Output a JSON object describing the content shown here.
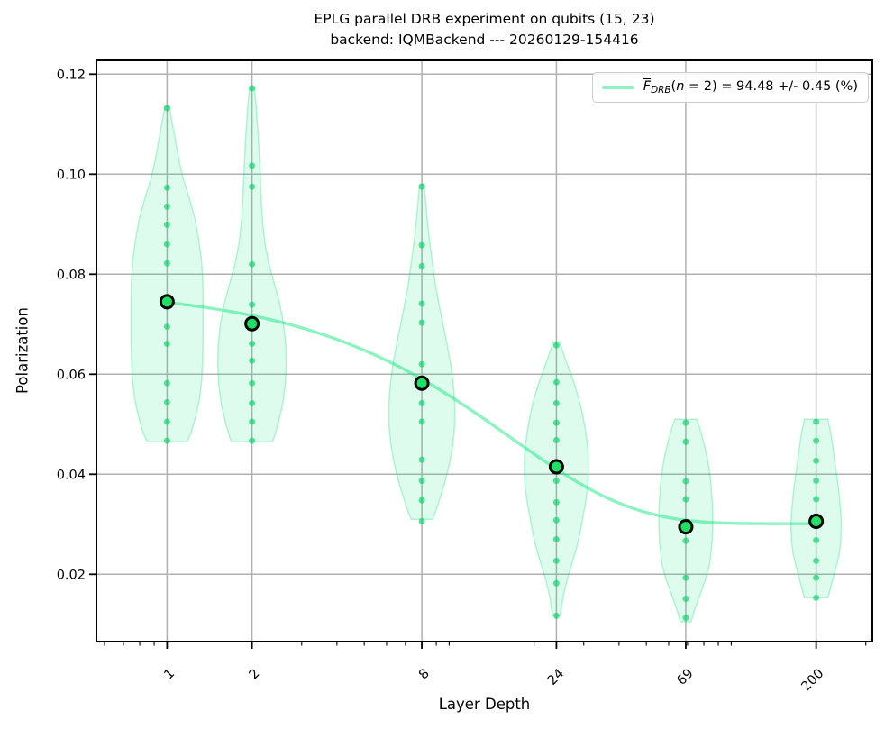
{
  "chart_data": {
    "type": "violin+line",
    "title": "EPLG parallel DRB experiment on qubits (15, 23)",
    "subtitle": "backend: IQMBackend --- 20260129-154416",
    "xlabel": "Layer Depth",
    "ylabel": "Polarization",
    "x_scale": "log",
    "grid": true,
    "xlim": [
      0.56,
      317
    ],
    "ylim": [
      0.0068,
      0.1227
    ],
    "xticks": {
      "values": [
        1,
        2,
        8,
        24,
        69,
        200
      ],
      "labels": [
        "1",
        "2",
        "8",
        "24",
        "69",
        "200"
      ]
    },
    "minor_xticks": [
      0.6,
      0.7,
      0.8,
      0.9,
      3,
      4,
      5,
      6,
      7,
      9,
      10,
      20,
      30,
      40,
      50,
      60,
      70,
      80,
      90,
      100,
      300
    ],
    "yticks": {
      "values": [
        0.02,
        0.04,
        0.06,
        0.08,
        0.1,
        0.12
      ],
      "labels": [
        "0.02",
        "0.04",
        "0.06",
        "0.08",
        "0.10",
        "0.12"
      ]
    },
    "depths": [
      1,
      2,
      8,
      24,
      69,
      200
    ],
    "means": [
      0.0745,
      0.0701,
      0.0582,
      0.0415,
      0.0295,
      0.0306
    ],
    "samples": [
      [
        0.1132,
        0.0973,
        0.0935,
        0.0899,
        0.086,
        0.0822,
        0.0695,
        0.0661,
        0.0582,
        0.0544,
        0.0505,
        0.0467
      ],
      [
        0.1172,
        0.1017,
        0.0975,
        0.082,
        0.0739,
        0.0661,
        0.0627,
        0.0582,
        0.0542,
        0.0505,
        0.0467
      ],
      [
        0.0975,
        0.0858,
        0.0816,
        0.0741,
        0.0703,
        0.062,
        0.0542,
        0.0505,
        0.0429,
        0.0387,
        0.0348,
        0.0306
      ],
      [
        0.0658,
        0.0584,
        0.0542,
        0.0503,
        0.0468,
        0.0387,
        0.0344,
        0.0308,
        0.027,
        0.0227,
        0.0182,
        0.0117
      ],
      [
        0.0503,
        0.0465,
        0.0386,
        0.035,
        0.0267,
        0.0193,
        0.0151,
        0.0113
      ],
      [
        0.0505,
        0.0467,
        0.0427,
        0.0387,
        0.035,
        0.0268,
        0.0227,
        0.0193,
        0.0153
      ]
    ],
    "violins": [
      {
        "depth": 1,
        "profile": [
          [
            0.1135,
            2.5
          ],
          [
            0.111,
            5
          ],
          [
            0.107,
            9
          ],
          [
            0.103,
            13
          ],
          [
            0.099,
            18
          ],
          [
            0.095,
            25
          ],
          [
            0.091,
            31
          ],
          [
            0.087,
            35
          ],
          [
            0.083,
            38
          ],
          [
            0.079,
            39.5
          ],
          [
            0.075,
            40
          ],
          [
            0.071,
            40
          ],
          [
            0.067,
            40
          ],
          [
            0.063,
            39.5
          ],
          [
            0.059,
            38.5
          ],
          [
            0.055,
            36
          ],
          [
            0.051,
            31
          ],
          [
            0.048,
            26
          ],
          [
            0.0465,
            22
          ]
        ]
      },
      {
        "depth": 2,
        "profile": [
          [
            0.1175,
            2.5
          ],
          [
            0.114,
            4.5
          ],
          [
            0.11,
            6
          ],
          [
            0.106,
            7.5
          ],
          [
            0.102,
            8.5
          ],
          [
            0.098,
            9.5
          ],
          [
            0.094,
            10.5
          ],
          [
            0.09,
            12
          ],
          [
            0.086,
            14.5
          ],
          [
            0.082,
            19
          ],
          [
            0.078,
            25
          ],
          [
            0.074,
            31
          ],
          [
            0.07,
            35
          ],
          [
            0.066,
            37.5
          ],
          [
            0.062,
            38
          ],
          [
            0.058,
            37
          ],
          [
            0.054,
            34
          ],
          [
            0.05,
            29
          ],
          [
            0.0465,
            23
          ]
        ]
      },
      {
        "depth": 8,
        "profile": [
          [
            0.098,
            2.5
          ],
          [
            0.094,
            4.5
          ],
          [
            0.09,
            6.5
          ],
          [
            0.086,
            9
          ],
          [
            0.082,
            12
          ],
          [
            0.078,
            15
          ],
          [
            0.074,
            19
          ],
          [
            0.07,
            23.5
          ],
          [
            0.066,
            28
          ],
          [
            0.062,
            32
          ],
          [
            0.058,
            35
          ],
          [
            0.054,
            36.5
          ],
          [
            0.05,
            36.5
          ],
          [
            0.046,
            34.5
          ],
          [
            0.042,
            30.5
          ],
          [
            0.038,
            25
          ],
          [
            0.034,
            18
          ],
          [
            0.031,
            12
          ]
        ]
      },
      {
        "depth": 24,
        "profile": [
          [
            0.0665,
            3.5
          ],
          [
            0.064,
            8
          ],
          [
            0.061,
            14
          ],
          [
            0.058,
            20
          ],
          [
            0.055,
            25
          ],
          [
            0.052,
            29
          ],
          [
            0.049,
            32
          ],
          [
            0.046,
            34.5
          ],
          [
            0.043,
            35.5
          ],
          [
            0.04,
            35.5
          ],
          [
            0.037,
            34.5
          ],
          [
            0.034,
            32
          ],
          [
            0.031,
            29
          ],
          [
            0.028,
            26
          ],
          [
            0.025,
            22
          ],
          [
            0.022,
            17
          ],
          [
            0.019,
            12
          ],
          [
            0.016,
            8
          ],
          [
            0.0117,
            4
          ]
        ]
      },
      {
        "depth": 69,
        "profile": [
          [
            0.051,
            12
          ],
          [
            0.049,
            16
          ],
          [
            0.047,
            19
          ],
          [
            0.044,
            23
          ],
          [
            0.041,
            26
          ],
          [
            0.038,
            28
          ],
          [
            0.034,
            29.5
          ],
          [
            0.03,
            30
          ],
          [
            0.026,
            29
          ],
          [
            0.022,
            26.5
          ],
          [
            0.019,
            22
          ],
          [
            0.016,
            16
          ],
          [
            0.013,
            10
          ],
          [
            0.0105,
            6
          ]
        ]
      },
      {
        "depth": 200,
        "profile": [
          [
            0.051,
            13
          ],
          [
            0.048,
            16.5
          ],
          [
            0.045,
            19
          ],
          [
            0.042,
            21
          ],
          [
            0.039,
            23.5
          ],
          [
            0.036,
            25.5
          ],
          [
            0.033,
            27
          ],
          [
            0.03,
            28
          ],
          [
            0.027,
            27.5
          ],
          [
            0.024,
            25.5
          ],
          [
            0.021,
            21.5
          ],
          [
            0.018,
            17
          ],
          [
            0.0153,
            13
          ]
        ]
      }
    ],
    "fit_curve": {
      "model": "A*alpha^d + B",
      "A": 0.047,
      "alpha": 0.9411,
      "B": 0.0301,
      "d_range": [
        1,
        200
      ]
    },
    "legend": {
      "position": "upper right",
      "marker": "line",
      "label_plain": "F_DRB(n = 2) = 94.48 +/- 0.45 (%)",
      "label_parts": [
        {
          "t": "F",
          "style": "ovl"
        },
        {
          "t": "DRB",
          "style": "subi"
        },
        {
          "t": "(",
          "style": ""
        },
        {
          "t": "n",
          "style": "ital"
        },
        {
          "t": " = 2) = 94.48 +/- 0.45 (%)",
          "style": ""
        }
      ]
    }
  },
  "colors": {
    "curve": "rgba(0,230,118,0.45)",
    "mean_fill": "#1ee064",
    "mean_edge": "#000000",
    "sample_dot": "rgba(5,210,105,0.65)",
    "violin_fill": "rgba(0,230,118,0.13)",
    "violin_edge": "rgba(0,220,110,0.28)",
    "grid": "#b0b0b0",
    "spine": "#000000",
    "text": "#000000",
    "legend_border": "#cccccc"
  }
}
